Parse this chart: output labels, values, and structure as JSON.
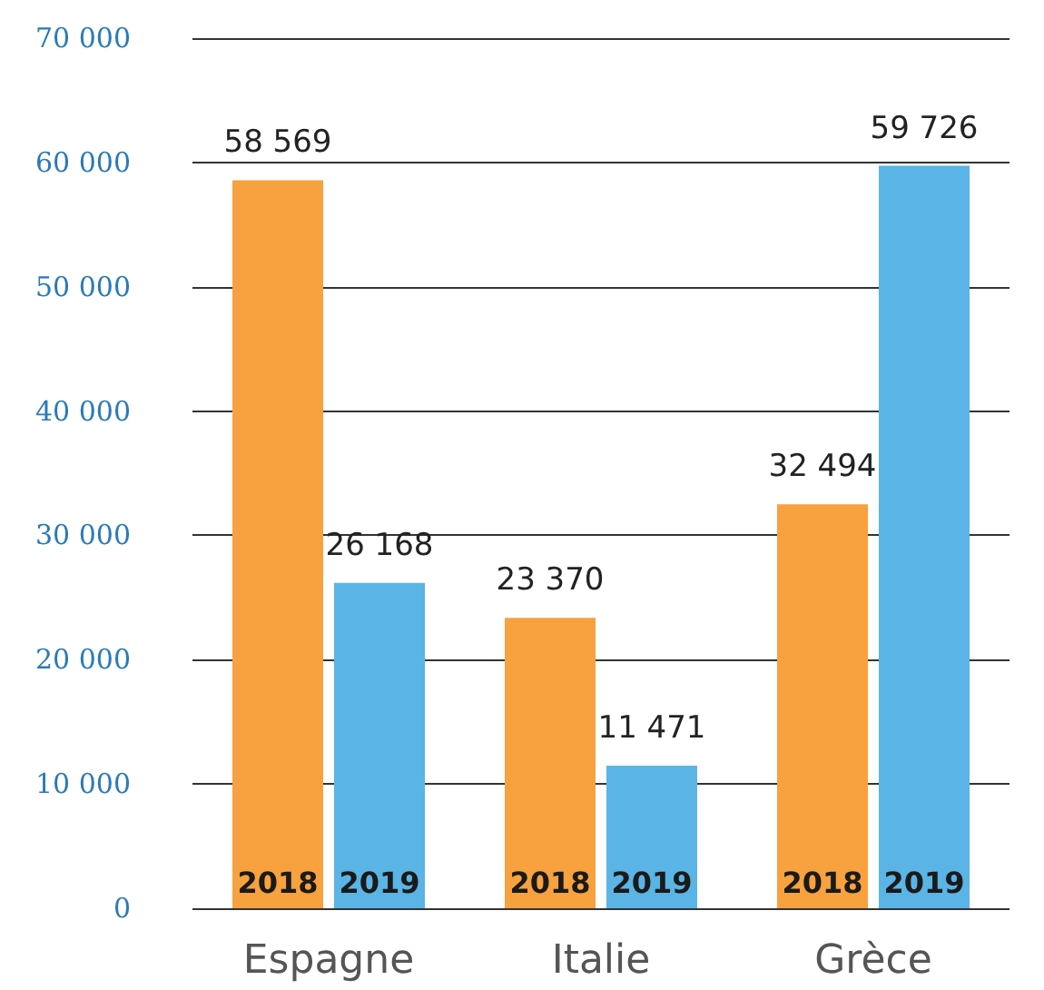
{
  "chart_data": {
    "type": "bar",
    "categories": [
      "Espagne",
      "Italie",
      "Grèce"
    ],
    "series": [
      {
        "name": "2018",
        "color": "#f7a13f",
        "values": [
          58569,
          23370,
          32494
        ],
        "value_labels": [
          "58 569",
          "23 370",
          "32 494"
        ]
      },
      {
        "name": "2019",
        "color": "#5ab4e5",
        "values": [
          26168,
          11471,
          59726
        ],
        "value_labels": [
          "26 168",
          "11 471",
          "59 726"
        ]
      }
    ],
    "ylim": [
      0,
      70000
    ],
    "yticks": [
      0,
      {
        "value": 10000,
        "label": "10 000"
      },
      {
        "value": 20000,
        "label": "20 000"
      },
      {
        "value": 30000,
        "label": "30 000"
      },
      {
        "value": 40000,
        "label": "40 000"
      },
      {
        "value": 50000,
        "label": "50 000"
      },
      {
        "value": 60000,
        "label": "60 000"
      },
      {
        "value": 70000,
        "label": "70 000"
      }
    ],
    "grid": "y"
  }
}
